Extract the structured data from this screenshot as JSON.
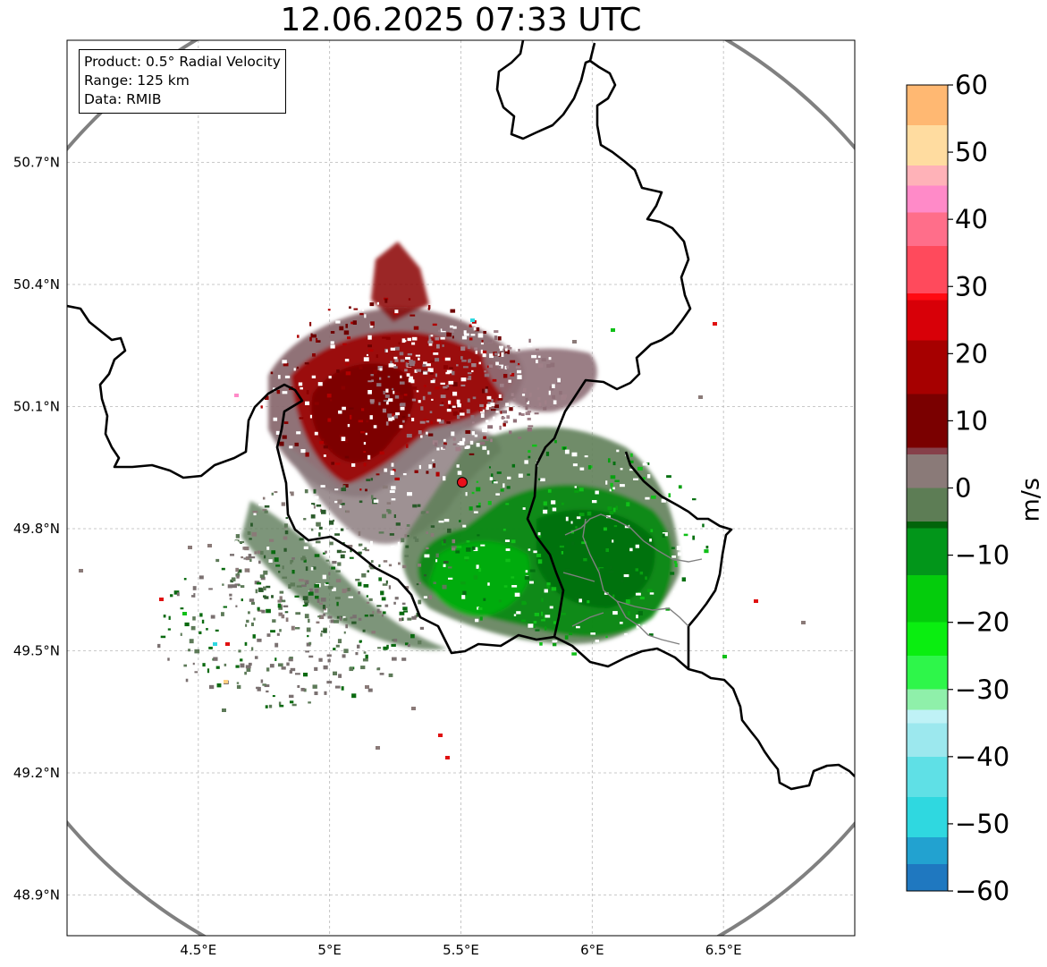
{
  "title": "12.06.2025 07:33 UTC",
  "info": {
    "product": "Product: 0.5° Radial Velocity",
    "range": "Range: 125 km",
    "data": "Data: RMIB"
  },
  "axes": {
    "x_ticks": [
      {
        "value": 4.5,
        "label": "4.5°E"
      },
      {
        "value": 5.0,
        "label": "5°E"
      },
      {
        "value": 5.5,
        "label": "5.5°E"
      },
      {
        "value": 6.0,
        "label": "6°E"
      },
      {
        "value": 6.5,
        "label": "6.5°E"
      }
    ],
    "y_ticks": [
      {
        "value": 50.7,
        "label": "50.7°N"
      },
      {
        "value": 50.4,
        "label": "50.4°N"
      },
      {
        "value": 50.1,
        "label": "50.1°N"
      },
      {
        "value": 49.8,
        "label": "49.8°N"
      },
      {
        "value": 49.5,
        "label": "49.5°N"
      },
      {
        "value": 49.2,
        "label": "49.2°N"
      },
      {
        "value": 48.9,
        "label": "48.9°N"
      }
    ],
    "lon_range": [
      4.0,
      7.0
    ],
    "lat_range": [
      48.8,
      51.0
    ]
  },
  "radar": {
    "lon": 5.505,
    "lat": 49.914,
    "marker_color": "#e8101a"
  },
  "colorbar": {
    "label": "m/s",
    "range": [
      -60,
      60
    ],
    "ticks": [
      60,
      50,
      40,
      30,
      20,
      10,
      0,
      -10,
      -20,
      -30,
      -40,
      -50,
      -60
    ],
    "tick_labels": [
      "60",
      "50",
      "40",
      "30",
      "20",
      "10",
      "0",
      "−10",
      "−20",
      "−30",
      "−40",
      "−50",
      "−60"
    ],
    "stops": [
      {
        "v": -60,
        "color": "#1f78c0"
      },
      {
        "v": -56,
        "color": "#22a2d0"
      },
      {
        "v": -52,
        "color": "#2fd8e0"
      },
      {
        "v": -46,
        "color": "#5fe0e6"
      },
      {
        "v": -40,
        "color": "#9ce8ee"
      },
      {
        "v": -35,
        "color": "#bff2f6"
      },
      {
        "v": -33,
        "color": "#8ff0aa"
      },
      {
        "v": -30,
        "color": "#2ef64a"
      },
      {
        "v": -25,
        "color": "#0aee10"
      },
      {
        "v": -20,
        "color": "#04cc0c"
      },
      {
        "v": -13,
        "color": "#02961a"
      },
      {
        "v": -6,
        "color": "#02640a"
      },
      {
        "v": -5,
        "color": "#5d7d55"
      },
      {
        "v": 0,
        "color": "#8a7a78"
      },
      {
        "v": 5,
        "color": "#86404a"
      },
      {
        "v": 6,
        "color": "#7a0000"
      },
      {
        "v": 14,
        "color": "#a60000"
      },
      {
        "v": 22,
        "color": "#d80008"
      },
      {
        "v": 28,
        "color": "#ff0a12"
      },
      {
        "v": 29,
        "color": "#ff4a5c"
      },
      {
        "v": 36,
        "color": "#ff6e8a"
      },
      {
        "v": 41,
        "color": "#ff8ac8"
      },
      {
        "v": 45,
        "color": "#ffb2b8"
      },
      {
        "v": 48,
        "color": "#ffdca0"
      },
      {
        "v": 54,
        "color": "#ffb872"
      },
      {
        "v": 60,
        "color": "#ff9c56"
      }
    ]
  },
  "colors": {
    "range_ring": "#808080",
    "border": "#000000",
    "grid": "#b8b8b8",
    "admin_border": "#808080"
  }
}
